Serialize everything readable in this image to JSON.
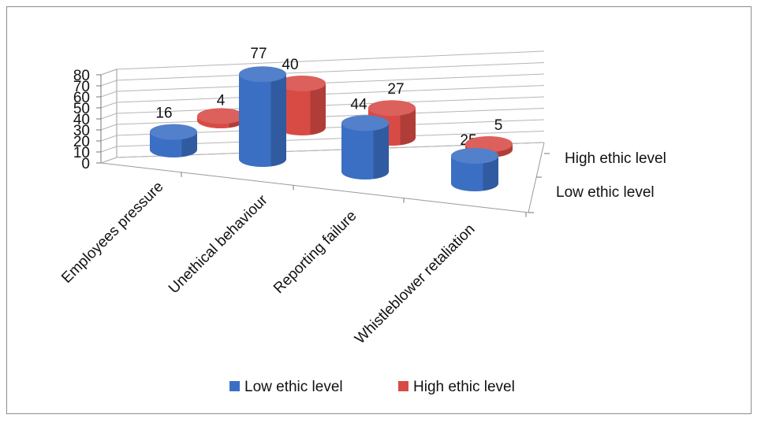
{
  "chart_data": {
    "type": "bar",
    "style": "3d-cylinder",
    "categories": [
      "Employees pressure",
      "Unethical behaviour",
      "Reporting failure",
      "Whistleblower retaliation"
    ],
    "series": [
      {
        "name": "Low ethic level",
        "values": [
          16,
          77,
          44,
          25
        ],
        "color": "#3b6fc4"
      },
      {
        "name": "High ethic level",
        "values": [
          4,
          40,
          27,
          5
        ],
        "color": "#d84b45"
      }
    ],
    "ylim": [
      0,
      80
    ],
    "yticks": [
      0,
      10,
      20,
      30,
      40,
      50,
      60,
      70,
      80
    ],
    "grid": true,
    "legend": "bottom",
    "depth_labels": [
      "High ethic level",
      "Low ethic level"
    ]
  }
}
